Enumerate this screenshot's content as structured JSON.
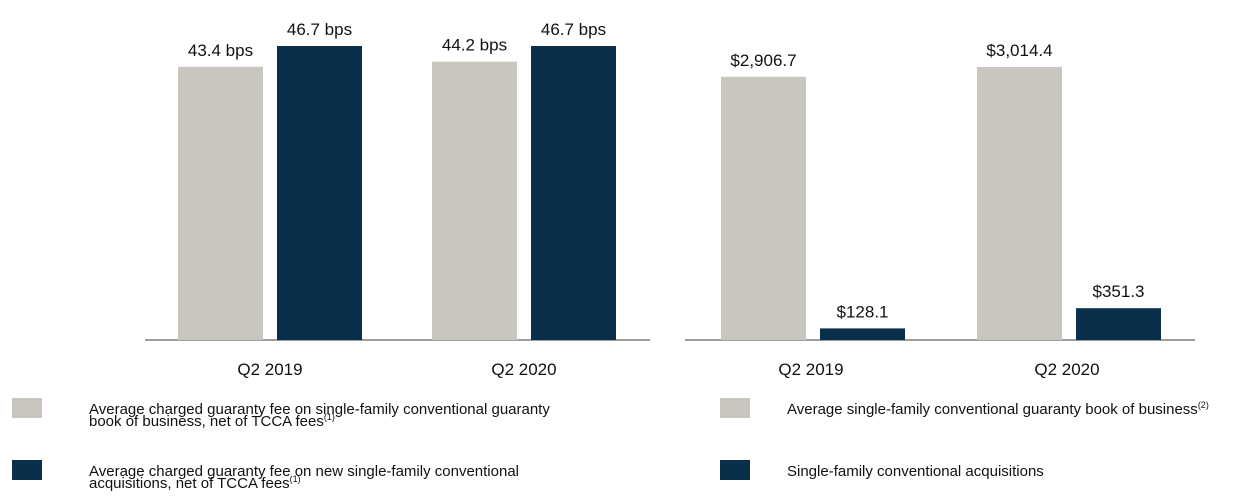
{
  "chart_data": [
    {
      "type": "bar",
      "categories": [
        "Q2 2019",
        "Q2 2020"
      ],
      "series": [
        {
          "name": "Average charged guaranty fee on single-family conventional guaranty book of business, net of TCCA fees",
          "footnote": "(1)",
          "color": "#c9c6c0",
          "values": [
            43.4,
            44.2
          ],
          "value_labels": [
            "43.4 bps",
            "44.2 bps"
          ]
        },
        {
          "name": "Average charged guaranty fee on new single-family conventional acquisitions, net of TCCA fees",
          "footnote": "(1)",
          "color": "#0a2f4b",
          "values": [
            46.7,
            46.7
          ],
          "value_labels": [
            "46.7 bps",
            "46.7 bps"
          ]
        }
      ]
    },
    {
      "type": "bar",
      "categories": [
        "Q2 2019",
        "Q2 2020"
      ],
      "series": [
        {
          "name": "Average single-family conventional guaranty book of business",
          "footnote": "(2)",
          "color": "#c9c6c0",
          "values": [
            2906.7,
            3014.4
          ],
          "value_labels": [
            "$2,906.7",
            "$3,014.4"
          ]
        },
        {
          "name": "Single-family conventional acquisitions",
          "color": "#0a2f4b",
          "values": [
            128.1,
            351.3
          ],
          "value_labels": [
            "$128.1",
            "$351.3"
          ]
        }
      ]
    }
  ]
}
